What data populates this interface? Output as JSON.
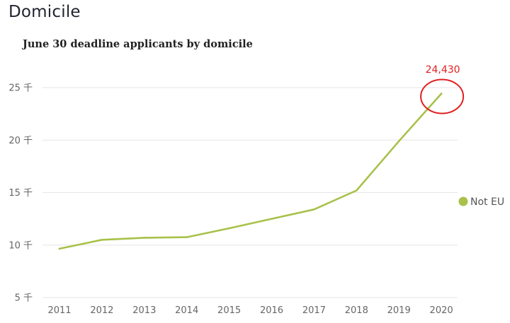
{
  "page": {
    "title": "Domicile"
  },
  "chart_data": {
    "type": "line",
    "title": "June 30 deadline applicants by domicile",
    "xlabel": "",
    "ylabel": "",
    "categories": [
      "2011",
      "2012",
      "2013",
      "2014",
      "2015",
      "2016",
      "2017",
      "2018",
      "2019",
      "2020"
    ],
    "series": [
      {
        "name": "Not EU",
        "color": "#a8c14a",
        "values": [
          9650,
          10500,
          10700,
          10750,
          11600,
          12500,
          13400,
          15200,
          19900,
          24430
        ]
      }
    ],
    "y_ticks": [
      {
        "value": 5000,
        "label": "5 千"
      },
      {
        "value": 10000,
        "label": "10 千"
      },
      {
        "value": 15000,
        "label": "15 千"
      },
      {
        "value": 20000,
        "label": "20 千"
      },
      {
        "value": 25000,
        "label": "25 千"
      }
    ],
    "ylim": [
      5000,
      25000
    ],
    "grid": true,
    "legend_position": "right",
    "annotation": {
      "label": "24,430",
      "category": "2020",
      "value": 24430,
      "color": "#e02020"
    }
  }
}
